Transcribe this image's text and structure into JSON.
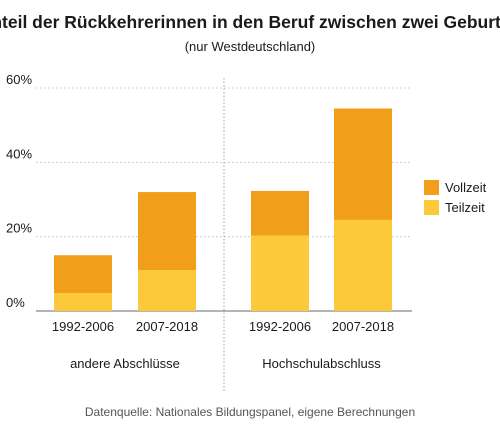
{
  "chart_data": {
    "type": "bar",
    "stacked": true,
    "title": "Anteil der Rückkehrerinnen in den Beruf zwischen zwei Geburten",
    "subtitle": "(nur Westdeutschland)",
    "categories": [
      "1992-2006",
      "2007-2018",
      "1992-2006",
      "2007-2018"
    ],
    "groups": [
      {
        "label": "andere Abschlüsse",
        "categories": [
          0,
          1
        ]
      },
      {
        "label": "Hochschulabschluss",
        "categories": [
          2,
          3
        ]
      }
    ],
    "series": [
      {
        "name": "Teilzeit",
        "color": "#fcc93a",
        "values": [
          4.8,
          11.0,
          20.3,
          24.5
        ]
      },
      {
        "name": "Vollzeit",
        "color": "#f19f1b",
        "values": [
          10.2,
          21.0,
          12.0,
          30.0
        ]
      }
    ],
    "legend_order": [
      "Vollzeit",
      "Teilzeit"
    ],
    "ylim": [
      0,
      60
    ],
    "yticks": [
      0,
      20,
      40,
      60
    ],
    "ytick_labels": [
      "0%",
      "20%",
      "40%",
      "60%"
    ],
    "legend_position": "right",
    "grid": "horizontal",
    "source": "Datenquelle: Nationales Bildungspanel, eigene Berechnungen"
  }
}
